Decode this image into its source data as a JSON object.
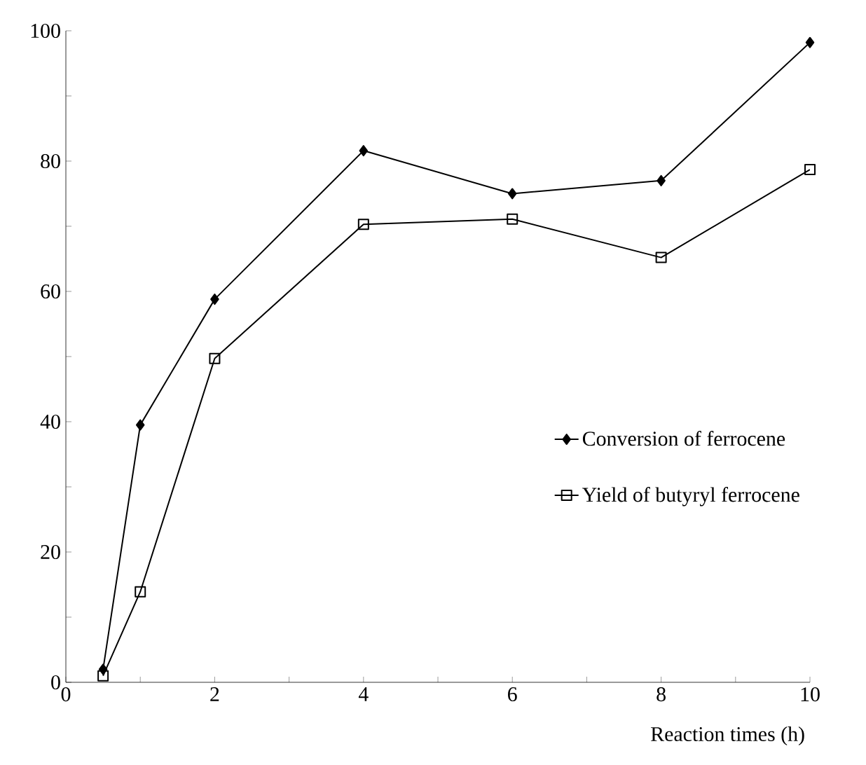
{
  "chart_data": {
    "type": "line",
    "xlabel": "Reaction times (h)",
    "xlim": [
      0,
      10
    ],
    "ylim": [
      0,
      100
    ],
    "xticks": [
      0,
      {
        "value": 1,
        "label": null
      },
      2,
      {
        "value": 3,
        "label": null
      },
      4,
      {
        "value": 5,
        "label": null
      },
      6,
      {
        "value": 7,
        "label": null
      },
      8,
      {
        "value": 9,
        "label": null
      },
      10
    ],
    "yticks": [
      0,
      {
        "value": 10,
        "label": null
      },
      20,
      {
        "value": 30,
        "label": null
      },
      40,
      {
        "value": 50,
        "label": null
      },
      60,
      {
        "value": 70,
        "label": null
      },
      80,
      {
        "value": 90,
        "label": null
      },
      100
    ],
    "legend": "right",
    "grid": false,
    "series": [
      {
        "name": "Conversion of ferrocene",
        "color": "#000000",
        "marker": "diamond",
        "x": [
          0.5,
          1,
          2,
          4,
          6,
          8,
          10
        ],
        "values": [
          2,
          39.5,
          58.8,
          81.6,
          75,
          77,
          98.2
        ]
      },
      {
        "name": "Yield of butyryl ferrocene",
        "color": "#000000",
        "marker": "square",
        "x": [
          0.5,
          1,
          2,
          4,
          6,
          8,
          10
        ],
        "values": [
          1,
          13.9,
          49.7,
          70.3,
          71.1,
          65.2,
          78.7
        ]
      }
    ]
  }
}
